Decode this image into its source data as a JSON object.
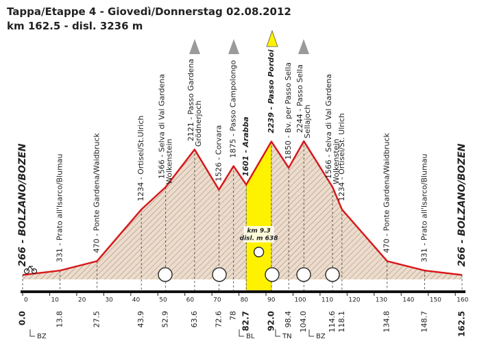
{
  "chart_data": {
    "type": "line",
    "title": "Tappa/Etappe 4 - Giovedì/Donnerstag  02.08.2012",
    "subtitle": "km 162.5 - disl. 3236 m",
    "x": [
      {
        "value": 0,
        "label": "0.0"
      },
      13.8,
      27.5,
      43.9,
      52.9,
      63.6,
      72.6,
      78,
      82.7,
      {
        "value": 92,
        "label": "92.0"
      },
      98.4,
      {
        "value": 104,
        "label": "104.0"
      },
      114.6,
      118.1,
      134.8,
      148.7,
      162.5
    ],
    "values": [
      266,
      331,
      470,
      1234,
      1566,
      2121,
      1526,
      1875,
      1601,
      2239,
      1850,
      2244,
      1566,
      1234,
      470,
      331,
      266
    ],
    "value_labels": [
      "266 - BOLZANO/BOZEN",
      "331 - Prato all'Isarco/Blumau",
      "470 - Ponte Gardena/Waidbruck",
      "1234 - Ortisei/St.Ulrich",
      [
        "1566 - Selva di Val Gardena",
        "Wolkenstein"
      ],
      [
        "2121 - Passo Gardena",
        "Grödnerjoch"
      ],
      "1526 - Corvara",
      "1875 - Passo Campolongo",
      "1601 - Arabba",
      "2239 - Passo Pordoi",
      "1850 - Bv. per Passo Sella",
      [
        "2244 - Passo Sella",
        "Sellajoch"
      ],
      [
        "1566 - Selva di Val Gardena",
        "Wolkenstein"
      ],
      "1234 - Ortisei/St. Ulrich",
      "470 - Ponte Gardena/Waidbruck",
      "331 - Prato all'Isarco/Blumau",
      "266 - BOLZANO/BOZEN"
    ],
    "color": "#d7191c",
    "fill": "#eddccb",
    "xlim": [
      0,
      162.5
    ],
    "ylim": [
      200,
      2600
    ],
    "xticks": [
      0,
      10,
      20,
      30,
      40,
      50,
      60,
      70,
      80,
      90,
      100,
      110,
      120,
      130,
      140,
      150,
      160
    ],
    "highlight": {
      "color": "#fff200",
      "labels": [
        "km 9.3",
        "disl. m 638"
      ]
    },
    "regions": [
      "BZ",
      "BL",
      "TN",
      "BZ"
    ]
  }
}
